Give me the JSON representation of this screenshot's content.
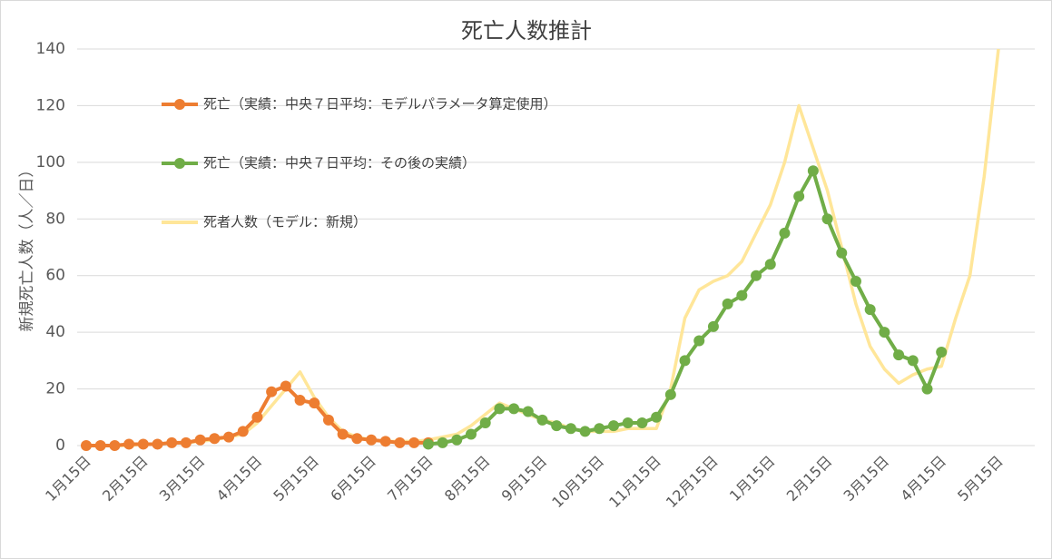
{
  "chart_data": {
    "type": "line",
    "title": "死亡人数推計",
    "y_label": "新規死亡人数（人／日）",
    "categories": [
      "1月15日",
      null,
      null,
      null,
      "2月15日",
      null,
      null,
      null,
      "3月15日",
      null,
      null,
      null,
      "4月15日",
      null,
      null,
      null,
      "5月15日",
      null,
      null,
      null,
      "6月15日",
      null,
      null,
      null,
      "7月15日",
      null,
      null,
      null,
      "8月15日",
      null,
      null,
      null,
      "9月15日",
      null,
      null,
      null,
      "10月15日",
      null,
      null,
      null,
      "11月15日",
      null,
      null,
      null,
      "12月15日",
      null,
      null,
      null,
      "1月15日",
      null,
      null,
      null,
      "2月15日",
      null,
      null,
      null,
      "3月15日",
      null,
      null,
      null,
      "4月15日",
      null,
      null,
      null,
      "5月15日"
    ],
    "series": [
      {
        "name": "死亡（実績：中央７日平均：モデルパラメータ算定使用）",
        "color": "#ed7d31",
        "markers": true,
        "values": [
          0,
          0,
          0,
          0.5,
          0.5,
          0.5,
          1,
          1,
          2,
          2.5,
          3,
          5,
          10,
          19,
          21,
          16,
          15,
          9,
          4,
          2.5,
          2,
          1.5,
          1,
          1,
          1,
          null,
          null,
          null,
          null,
          null,
          null,
          null,
          null,
          null,
          null,
          null,
          null,
          null,
          null,
          null,
          null,
          null,
          null,
          null,
          null,
          null,
          null,
          null,
          null,
          null,
          null,
          null,
          null,
          null,
          null,
          null,
          null,
          null,
          null,
          null,
          null,
          null,
          null,
          null,
          null
        ]
      },
      {
        "name": "死亡（実績：中央７日平均：その後の実績）",
        "color": "#70ad47",
        "markers": true,
        "values": [
          null,
          null,
          null,
          null,
          null,
          null,
          null,
          null,
          null,
          null,
          null,
          null,
          null,
          null,
          null,
          null,
          null,
          null,
          null,
          null,
          null,
          null,
          null,
          null,
          0.5,
          1,
          2,
          4,
          8,
          13,
          13,
          12,
          9,
          7,
          6,
          5,
          6,
          7,
          8,
          8,
          10,
          18,
          30,
          37,
          42,
          50,
          53,
          60,
          64,
          75,
          88,
          97,
          80,
          68,
          58,
          48,
          40,
          32,
          30,
          20,
          33,
          null,
          null,
          null,
          null
        ]
      },
      {
        "name": "死者人数（モデル：新規）",
        "color": "#ffe699",
        "markers": false,
        "values": [
          null,
          null,
          0,
          0,
          0.5,
          0.5,
          1,
          1,
          1.5,
          2,
          3,
          4,
          8,
          14,
          20,
          26,
          17,
          10,
          5,
          3,
          2,
          1.5,
          1.5,
          1.5,
          2,
          3,
          4,
          7,
          11,
          15,
          13,
          11,
          9,
          8,
          6,
          5,
          5,
          5,
          6,
          6,
          6,
          20,
          45,
          55,
          58,
          60,
          65,
          75,
          85,
          100,
          120,
          105,
          90,
          70,
          50,
          35,
          27,
          22,
          25,
          27,
          28,
          45,
          60,
          95,
          140
        ]
      }
    ],
    "ylim": [
      0,
      140
    ],
    "yticks": [
      0,
      20,
      40,
      60,
      80,
      100,
      120,
      140
    ],
    "grid": true
  }
}
